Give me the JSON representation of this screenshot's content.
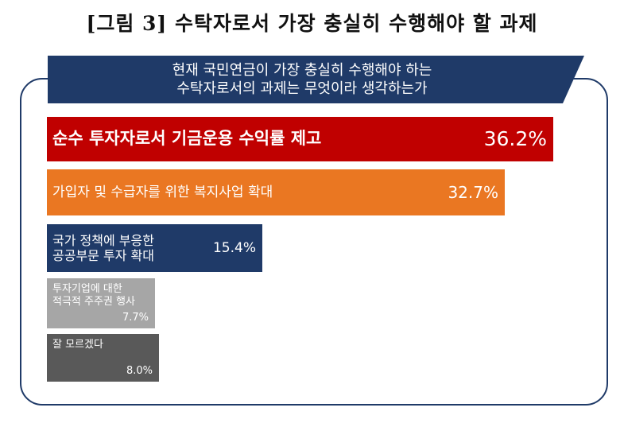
{
  "figure_title": "[그림 3] 수탁자로서 가장 충실히 수행해야 할 과제",
  "question": {
    "line1": "현재 국민연금이 가장 충실히 수행해야 하는",
    "line2": "수탁자로서의 과제는 무엇이라 생각하는가"
  },
  "colors": {
    "frame": "#1f3a68",
    "banner": "#1f3a68",
    "bars": [
      "#c00000",
      "#ea7722",
      "#1f3a68",
      "#a6a6a6",
      "#595959"
    ]
  },
  "chart_data": {
    "type": "bar",
    "orientation": "horizontal",
    "title": "[그림 3] 수탁자로서 가장 충실히 수행해야 할 과제",
    "categories": [
      "순수 투자자로서 기금운용 수익률 제고",
      "가입자 및 수급자를 위한 복지사업 확대",
      "국가 정책에 부응한 공공부문 투자 확대",
      "투자기업에 대한 적극적 주주권 행사",
      "잘 모르겠다"
    ],
    "label_lines": [
      [
        "순수 투자자로서 기금운용 수익률 제고"
      ],
      [
        "가입자 및 수급자를 위한 복지사업 확대"
      ],
      [
        "국가 정책에 부응한",
        "공공부문 투자 확대"
      ],
      [
        "투자기업에 대한",
        "적극적 주주권 행사"
      ],
      [
        "잘 모르겠다"
      ]
    ],
    "values": [
      36.2,
      32.7,
      15.4,
      7.7,
      8.0
    ],
    "value_labels": [
      "36.2%",
      "32.7%",
      "15.4%",
      "7.7%",
      "8.0%"
    ],
    "unit": "%",
    "xlabel": "",
    "ylabel": "",
    "grid": false,
    "legend": "none"
  }
}
